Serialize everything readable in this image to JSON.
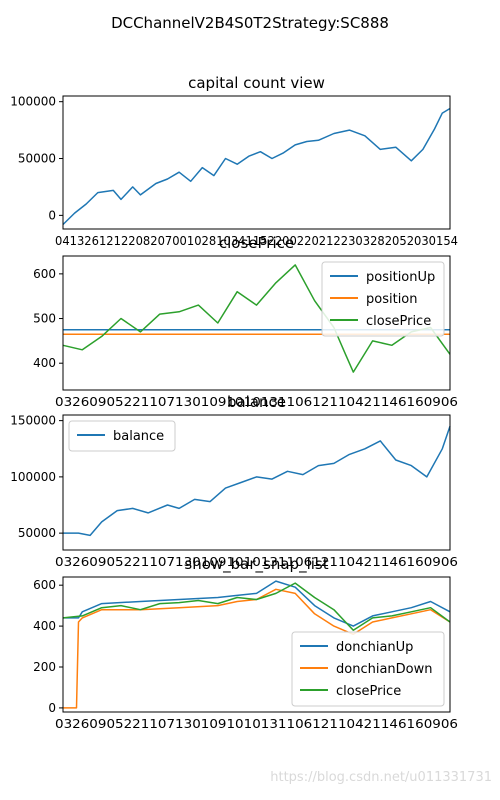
{
  "figure_title": "DCChannelV2B4S0T2Strategy:SC888",
  "watermark": "https://blog.csdn.net/u011331731",
  "colors": {
    "blue": "#1f77b4",
    "orange": "#ff7f0e",
    "green": "#2ca02c"
  },
  "chart_data": [
    {
      "type": "line",
      "title": "capital count view",
      "ylim": [
        -12000,
        105000
      ],
      "y_ticks": [
        0,
        50000,
        100000
      ],
      "x_tick_labels": "0413261212208207001028103411522002202122303282052030154",
      "grid": false,
      "series": [
        {
          "name": "",
          "color": "#1f77b4",
          "x": [
            0,
            3,
            6,
            9,
            13,
            15,
            18,
            20,
            24,
            27,
            30,
            33,
            36,
            39,
            42,
            45,
            48,
            51,
            54,
            57,
            60,
            63,
            66,
            70,
            74,
            78,
            82,
            86,
            90,
            93,
            96,
            98,
            100
          ],
          "y": [
            -8000,
            2000,
            10000,
            20000,
            22000,
            14000,
            25000,
            18000,
            28000,
            32000,
            38000,
            30000,
            42000,
            35000,
            50000,
            45000,
            52000,
            56000,
            50000,
            55000,
            62000,
            65000,
            66000,
            72000,
            75000,
            70000,
            58000,
            60000,
            48000,
            58000,
            76000,
            90000,
            94000
          ]
        }
      ]
    },
    {
      "type": "line",
      "title": "closePrice",
      "ylim": [
        340,
        640
      ],
      "y_ticks": [
        400,
        500,
        600
      ],
      "x_tick_labels": "03260905221107130109101013110612110421146160906",
      "legend": "top-right",
      "series": [
        {
          "name": "positionUp",
          "color": "#1f77b4",
          "x": [
            0,
            100
          ],
          "y": [
            475,
            475
          ]
        },
        {
          "name": "position",
          "color": "#ff7f0e",
          "x": [
            0,
            100
          ],
          "y": [
            465,
            465
          ]
        },
        {
          "name": "closePrice",
          "color": "#2ca02c",
          "x": [
            0,
            5,
            10,
            15,
            20,
            25,
            30,
            35,
            40,
            45,
            50,
            55,
            60,
            65,
            70,
            73,
            75,
            80,
            85,
            90,
            95,
            100
          ],
          "y": [
            440,
            430,
            460,
            500,
            470,
            510,
            515,
            530,
            490,
            560,
            530,
            580,
            620,
            540,
            480,
            420,
            380,
            450,
            440,
            470,
            480,
            420
          ]
        }
      ]
    },
    {
      "type": "line",
      "title": "balance",
      "ylim": [
        35000,
        155000
      ],
      "y_ticks": [
        50000,
        100000,
        150000
      ],
      "x_tick_labels": "03260905221107130109101013110612110421146160906",
      "legend": "top-left",
      "series": [
        {
          "name": "balance",
          "color": "#1f77b4",
          "x": [
            0,
            4,
            7,
            10,
            14,
            18,
            22,
            27,
            30,
            34,
            38,
            42,
            46,
            50,
            54,
            58,
            62,
            66,
            70,
            74,
            78,
            82,
            86,
            90,
            94,
            98,
            100
          ],
          "y": [
            50000,
            50000,
            48000,
            60000,
            70000,
            72000,
            68000,
            75000,
            72000,
            80000,
            78000,
            90000,
            95000,
            100000,
            98000,
            105000,
            102000,
            110000,
            112000,
            120000,
            125000,
            132000,
            115000,
            110000,
            100000,
            125000,
            145000
          ]
        }
      ]
    },
    {
      "type": "line",
      "title": "show_bar_snap_list",
      "ylim": [
        -20,
        640
      ],
      "y_ticks": [
        0,
        200,
        400,
        600
      ],
      "x_tick_labels": "03260905221107130109101013110612110421146160906",
      "legend": "bottom-right",
      "series": [
        {
          "name": "donchianUp",
          "color": "#1f77b4",
          "x": [
            0,
            4,
            5,
            10,
            20,
            30,
            40,
            45,
            50,
            55,
            60,
            65,
            70,
            75,
            80,
            85,
            90,
            95,
            100
          ],
          "y": [
            440,
            440,
            470,
            510,
            520,
            530,
            540,
            550,
            560,
            620,
            590,
            500,
            440,
            400,
            450,
            470,
            490,
            520,
            470
          ]
        },
        {
          "name": "donchianDown",
          "color": "#ff7f0e",
          "x": [
            0,
            3.5,
            4,
            5,
            10,
            20,
            30,
            40,
            45,
            50,
            55,
            60,
            65,
            70,
            75,
            80,
            85,
            90,
            95,
            100
          ],
          "y": [
            0,
            0,
            420,
            440,
            480,
            480,
            490,
            500,
            520,
            530,
            580,
            560,
            460,
            400,
            360,
            420,
            440,
            460,
            480,
            420
          ]
        },
        {
          "name": "closePrice",
          "color": "#2ca02c",
          "x": [
            0,
            5,
            10,
            15,
            20,
            25,
            30,
            35,
            40,
            45,
            50,
            55,
            60,
            65,
            70,
            73,
            75,
            80,
            85,
            90,
            95,
            100
          ],
          "y": [
            440,
            450,
            490,
            500,
            480,
            510,
            515,
            525,
            510,
            540,
            530,
            560,
            610,
            540,
            480,
            420,
            380,
            440,
            450,
            470,
            490,
            420
          ]
        }
      ]
    }
  ]
}
